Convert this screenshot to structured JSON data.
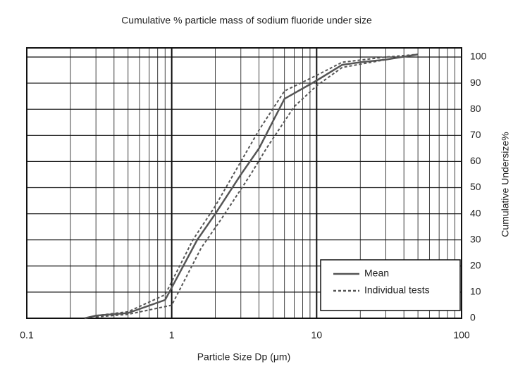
{
  "chart_data": {
    "type": "line",
    "title": "Cumulative % particle mass of sodium fluoride under size",
    "x_label": "Particle Size  Dp (μm)",
    "y_label": "Cumulative Undersize%",
    "x_log": true,
    "grid": true,
    "y_axis_side": "right",
    "legend": "lower right",
    "xlim": [
      0.1,
      100
    ],
    "xticks": [
      0.1,
      1,
      10,
      100
    ],
    "ylim": [
      0,
      103.5
    ],
    "yticks": [
      0,
      10,
      20,
      30,
      40,
      50,
      60,
      70,
      80,
      90,
      100
    ],
    "series": [
      {
        "name": "Mean",
        "color": "#555555",
        "dash": false,
        "x": [
          0.25,
          0.3,
          0.5,
          0.9,
          1.5,
          2,
          3,
          4,
          6,
          10,
          15,
          20,
          30,
          50
        ],
        "values": [
          0,
          1,
          2,
          7,
          30,
          40,
          55,
          65,
          84,
          91,
          97,
          98,
          99,
          101
        ]
      },
      {
        "name": "Individual tests",
        "color": "#555555",
        "dash": true,
        "x": [
          0.3,
          0.5,
          0.9,
          1.4,
          2,
          3,
          4,
          6,
          10,
          15,
          30,
          50
        ],
        "values": [
          1,
          2.5,
          9,
          30,
          43,
          60,
          72,
          87,
          93,
          98,
          100,
          101
        ]
      },
      {
        "color": "#555555",
        "dash": true,
        "x": [
          0.3,
          0.5,
          1,
          1.6,
          2.2,
          3.5,
          4.5,
          7,
          10,
          15,
          30,
          50
        ],
        "values": [
          0.5,
          1.5,
          5,
          27,
          38,
          55,
          65,
          81,
          89,
          96,
          99,
          101
        ]
      }
    ]
  }
}
